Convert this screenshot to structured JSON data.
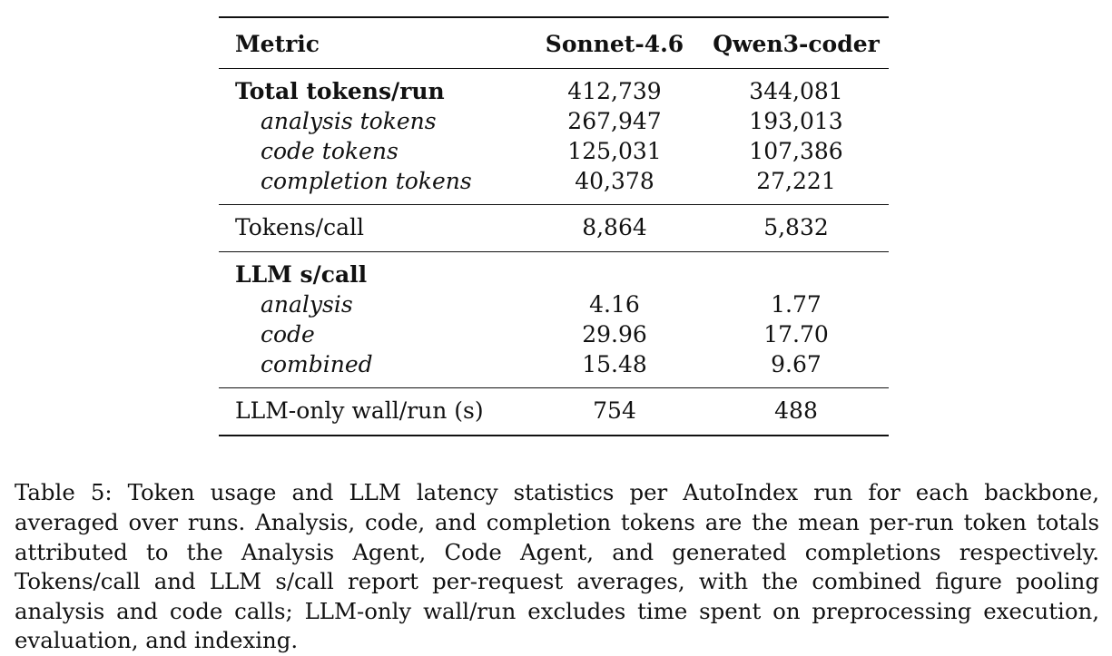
{
  "table": {
    "headers": [
      "Metric",
      "Sonnet-4.6",
      "Qwen3-coder"
    ],
    "groups": [
      {
        "label": "Total tokens/run",
        "values": [
          "412,739",
          "344,081"
        ],
        "rows": [
          {
            "label": "analysis tokens",
            "values": [
              "267,947",
              "193,013"
            ]
          },
          {
            "label": "code tokens",
            "values": [
              "125,031",
              "107,386"
            ]
          },
          {
            "label": "completion tokens",
            "values": [
              "40,378",
              "27,221"
            ]
          }
        ]
      },
      {
        "label": "Tokens/call",
        "values": [
          "8,864",
          "5,832"
        ]
      },
      {
        "label": "LLM s/call",
        "values": [
          "",
          ""
        ],
        "rows": [
          {
            "label": "analysis",
            "values": [
              "4.16",
              "1.77"
            ]
          },
          {
            "label": "code",
            "values": [
              "29.96",
              "17.70"
            ]
          },
          {
            "label": "combined",
            "values": [
              "15.48",
              "9.67"
            ]
          }
        ]
      },
      {
        "label": "LLM-only wall/run (s)",
        "values": [
          "754",
          "488"
        ]
      }
    ]
  },
  "caption": "Table 5: Token usage and LLM latency statistics per AutoIndex run for each backbone, averaged over runs. Analysis, code, and completion tokens are the mean per-run token totals attributed to the Analysis Agent, Code Agent, and generated completions respectively. Tokens/call and LLM s/call report per-request averages, with the combined figure pooling analysis and code calls; LLM-only wall/run excludes time spent on preprocessing execution, evaluation, and indexing."
}
